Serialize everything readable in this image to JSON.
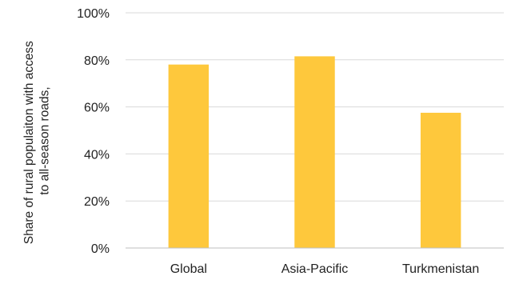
{
  "chart_data": {
    "type": "bar",
    "categories": [
      "Global",
      "Asia-Pacific",
      "Turkmenistan"
    ],
    "values": [
      78,
      81.5,
      57.5
    ],
    "value_unit": "%",
    "title": "",
    "xlabel": "",
    "ylabel_lines": [
      "Share of rural populaiton with access",
      "to all-season roads,"
    ],
    "ylim": [
      0,
      100
    ],
    "yticks": [
      "0%",
      "20%",
      "40%",
      "60%",
      "80%",
      "100%"
    ],
    "grid": true,
    "legend": "none",
    "colors": {
      "bar": "#FEC83C",
      "grid": "#D9D9D9",
      "axis": "#BFBFBF",
      "text": "#222222"
    }
  }
}
